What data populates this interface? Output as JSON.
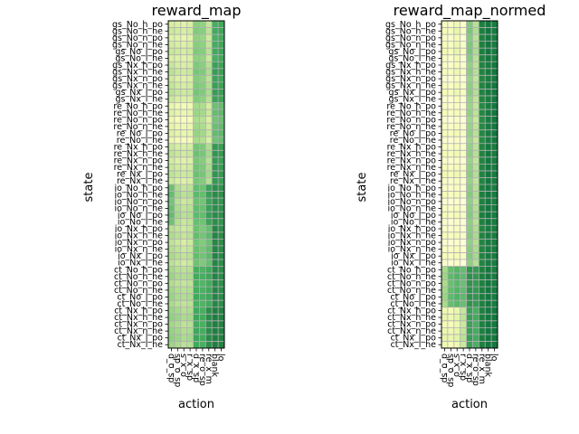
{
  "chart_data": [
    {
      "type": "heatmap",
      "title": "reward_map",
      "xlabel": "action",
      "ylabel": "state",
      "grid": true,
      "colormap": "YlGn",
      "x_categories": [
        "d_o_sp",
        "sp_o_sp",
        "s_x_o",
        "r_x_sp",
        "d_x_sp",
        "re_o_sp",
        "re_x_m",
        "blank",
        "lo"
      ],
      "y_categories": [
        "gs_No_h_po",
        "gs_No_h_ne",
        "gs_No_n_po",
        "gs_No_n_ne",
        "gs_No_l_po",
        "gs_No_l_ne",
        "gs_Nx_h_po",
        "gs_Nx_h_ne",
        "gs_Nx_n_po",
        "gs_Nx_n_ne",
        "gs_Nx_l_po",
        "gs_Nx_l_ne",
        "re_No_h_po",
        "re_No_h_ne",
        "re_No_n_po",
        "re_No_n_ne",
        "re_No_l_po",
        "re_No_l_ne",
        "re_Nx_h_po",
        "re_Nx_h_ne",
        "re_Nx_n_po",
        "re_Nx_n_ne",
        "re_Nx_l_po",
        "re_Nx_l_ne",
        "io_No_h_po",
        "io_No_h_ne",
        "io_No_n_po",
        "io_No_n_ne",
        "io_No_l_po",
        "io_No_l_ne",
        "io_Nx_h_po",
        "io_Nx_h_ne",
        "io_Nx_n_po",
        "io_Nx_n_ne",
        "io_Nx_l_po",
        "io_Nx_l_ne",
        "ct_No_h_po",
        "ct_No_h_ne",
        "ct_No_n_po",
        "ct_No_n_ne",
        "ct_No_l_po",
        "ct_No_l_ne",
        "ct_Nx_h_po",
        "ct_Nx_h_ne",
        "ct_Nx_n_po",
        "ct_Nx_n_ne",
        "ct_Nx_l_po",
        "ct_Nx_l_ne"
      ],
      "group_values": [
        [
          0.3,
          0.28,
          0.25,
          0.28,
          0.52,
          0.5,
          0.35,
          0.7,
          0.72
        ],
        [
          0.35,
          0.3,
          0.28,
          0.3,
          0.55,
          0.52,
          0.4,
          0.75,
          0.74
        ],
        [
          0.22,
          0.18,
          0.16,
          0.18,
          0.45,
          0.42,
          0.3,
          0.6,
          0.62
        ],
        [
          0.34,
          0.3,
          0.28,
          0.3,
          0.58,
          0.55,
          0.42,
          0.78,
          0.76
        ],
        [
          0.6,
          0.42,
          0.35,
          0.38,
          0.62,
          0.6,
          0.75,
          0.82,
          0.8
        ],
        [
          0.4,
          0.36,
          0.32,
          0.35,
          0.6,
          0.56,
          0.62,
          0.85,
          0.82
        ],
        [
          0.45,
          0.4,
          0.38,
          0.4,
          0.7,
          0.68,
          0.72,
          0.85,
          0.82
        ],
        [
          0.48,
          0.45,
          0.4,
          0.42,
          0.72,
          0.7,
          0.82,
          0.88,
          0.86
        ]
      ],
      "row_patterns": [
        0,
        0.05,
        -0.04,
        0.02,
        0.06,
        -0.02
      ]
    },
    {
      "type": "heatmap",
      "title": "reward_map_normed",
      "xlabel": "action",
      "ylabel": "state",
      "grid": true,
      "colormap": "YlGn",
      "x_categories": [
        "d_o_sp",
        "sp_o_sp",
        "s_x_o",
        "r_x_sp",
        "d_x_sp",
        "re_o_sp",
        "re_x_m",
        "blank",
        "lo"
      ],
      "y_categories": [
        "gs_No_h_po",
        "gs_No_h_ne",
        "gs_No_n_po",
        "gs_No_n_ne",
        "gs_No_l_po",
        "gs_No_l_ne",
        "gs_Nx_h_po",
        "gs_Nx_h_ne",
        "gs_Nx_n_po",
        "gs_Nx_n_ne",
        "gs_Nx_l_po",
        "gs_Nx_l_ne",
        "re_No_h_po",
        "re_No_h_ne",
        "re_No_n_po",
        "re_No_n_ne",
        "re_No_l_po",
        "re_No_l_ne",
        "re_Nx_h_po",
        "re_Nx_h_ne",
        "re_Nx_n_po",
        "re_Nx_n_ne",
        "re_Nx_l_po",
        "re_Nx_l_ne",
        "io_No_h_po",
        "io_No_h_ne",
        "io_No_n_po",
        "io_No_n_ne",
        "io_No_l_po",
        "io_No_l_ne",
        "io_Nx_h_po",
        "io_Nx_h_ne",
        "io_Nx_n_po",
        "io_Nx_n_ne",
        "io_Nx_l_po",
        "io_Nx_l_ne",
        "ct_No_h_po",
        "ct_No_h_ne",
        "ct_No_n_po",
        "ct_No_n_ne",
        "ct_No_l_po",
        "ct_No_l_ne",
        "ct_Nx_h_po",
        "ct_Nx_h_ne",
        "ct_Nx_n_po",
        "ct_Nx_n_ne",
        "ct_Nx_l_po",
        "ct_Nx_l_ne"
      ],
      "group_values": [
        [
          0.12,
          0.1,
          0.18,
          0.08,
          0.55,
          0.4,
          0.88,
          0.92,
          0.9
        ],
        [
          0.1,
          0.08,
          0.15,
          0.08,
          0.5,
          0.38,
          0.86,
          0.9,
          0.92
        ],
        [
          0.1,
          0.08,
          0.12,
          0.06,
          0.48,
          0.36,
          0.84,
          0.9,
          0.92
        ],
        [
          0.12,
          0.1,
          0.14,
          0.08,
          0.5,
          0.38,
          0.86,
          0.92,
          0.9
        ],
        [
          0.1,
          0.08,
          0.12,
          0.06,
          0.52,
          0.4,
          0.88,
          0.92,
          0.9
        ],
        [
          0.1,
          0.08,
          0.12,
          0.06,
          0.52,
          0.42,
          0.86,
          0.9,
          0.9
        ],
        [
          0.45,
          0.62,
          0.66,
          0.62,
          0.8,
          0.78,
          0.88,
          0.92,
          0.9
        ],
        [
          0.18,
          0.16,
          0.2,
          0.35,
          0.75,
          0.7,
          0.88,
          0.92,
          0.92
        ]
      ],
      "row_patterns": [
        0,
        0.04,
        -0.03,
        0.02,
        0.05,
        -0.02
      ]
    }
  ]
}
